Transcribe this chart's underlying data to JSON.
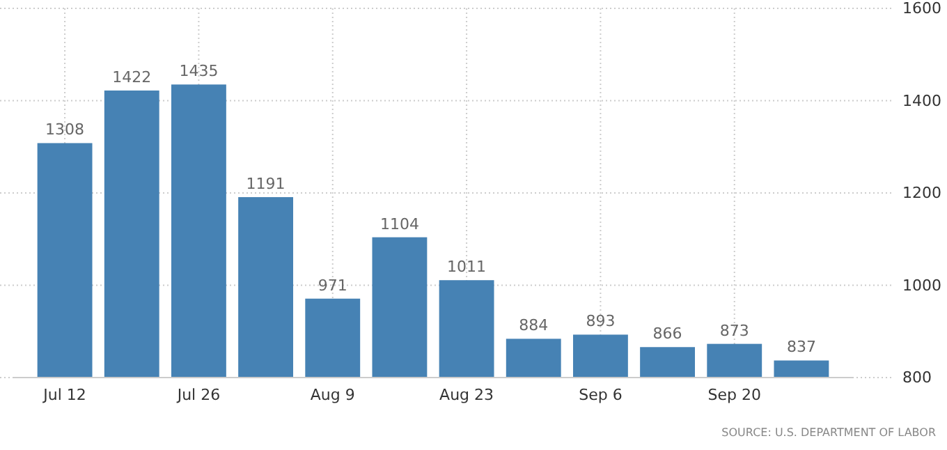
{
  "chart_data": {
    "type": "bar",
    "categories": [
      "Jul 12",
      null,
      "Jul 26",
      null,
      "Aug 9",
      null,
      "Aug 23",
      null,
      "Sep 6",
      null,
      "Sep 20",
      null
    ],
    "values": [
      1308,
      1422,
      1435,
      1191,
      971,
      1104,
      1011,
      884,
      893,
      866,
      873,
      837
    ],
    "color": "#4682b4",
    "ylim": [
      800,
      1600
    ],
    "yticks": [
      800,
      1000,
      1200,
      1400,
      1600
    ],
    "grid": true,
    "data_labels": true,
    "annotations": [
      "SOURCE: U.S. DEPARTMENT OF LABOR"
    ]
  }
}
